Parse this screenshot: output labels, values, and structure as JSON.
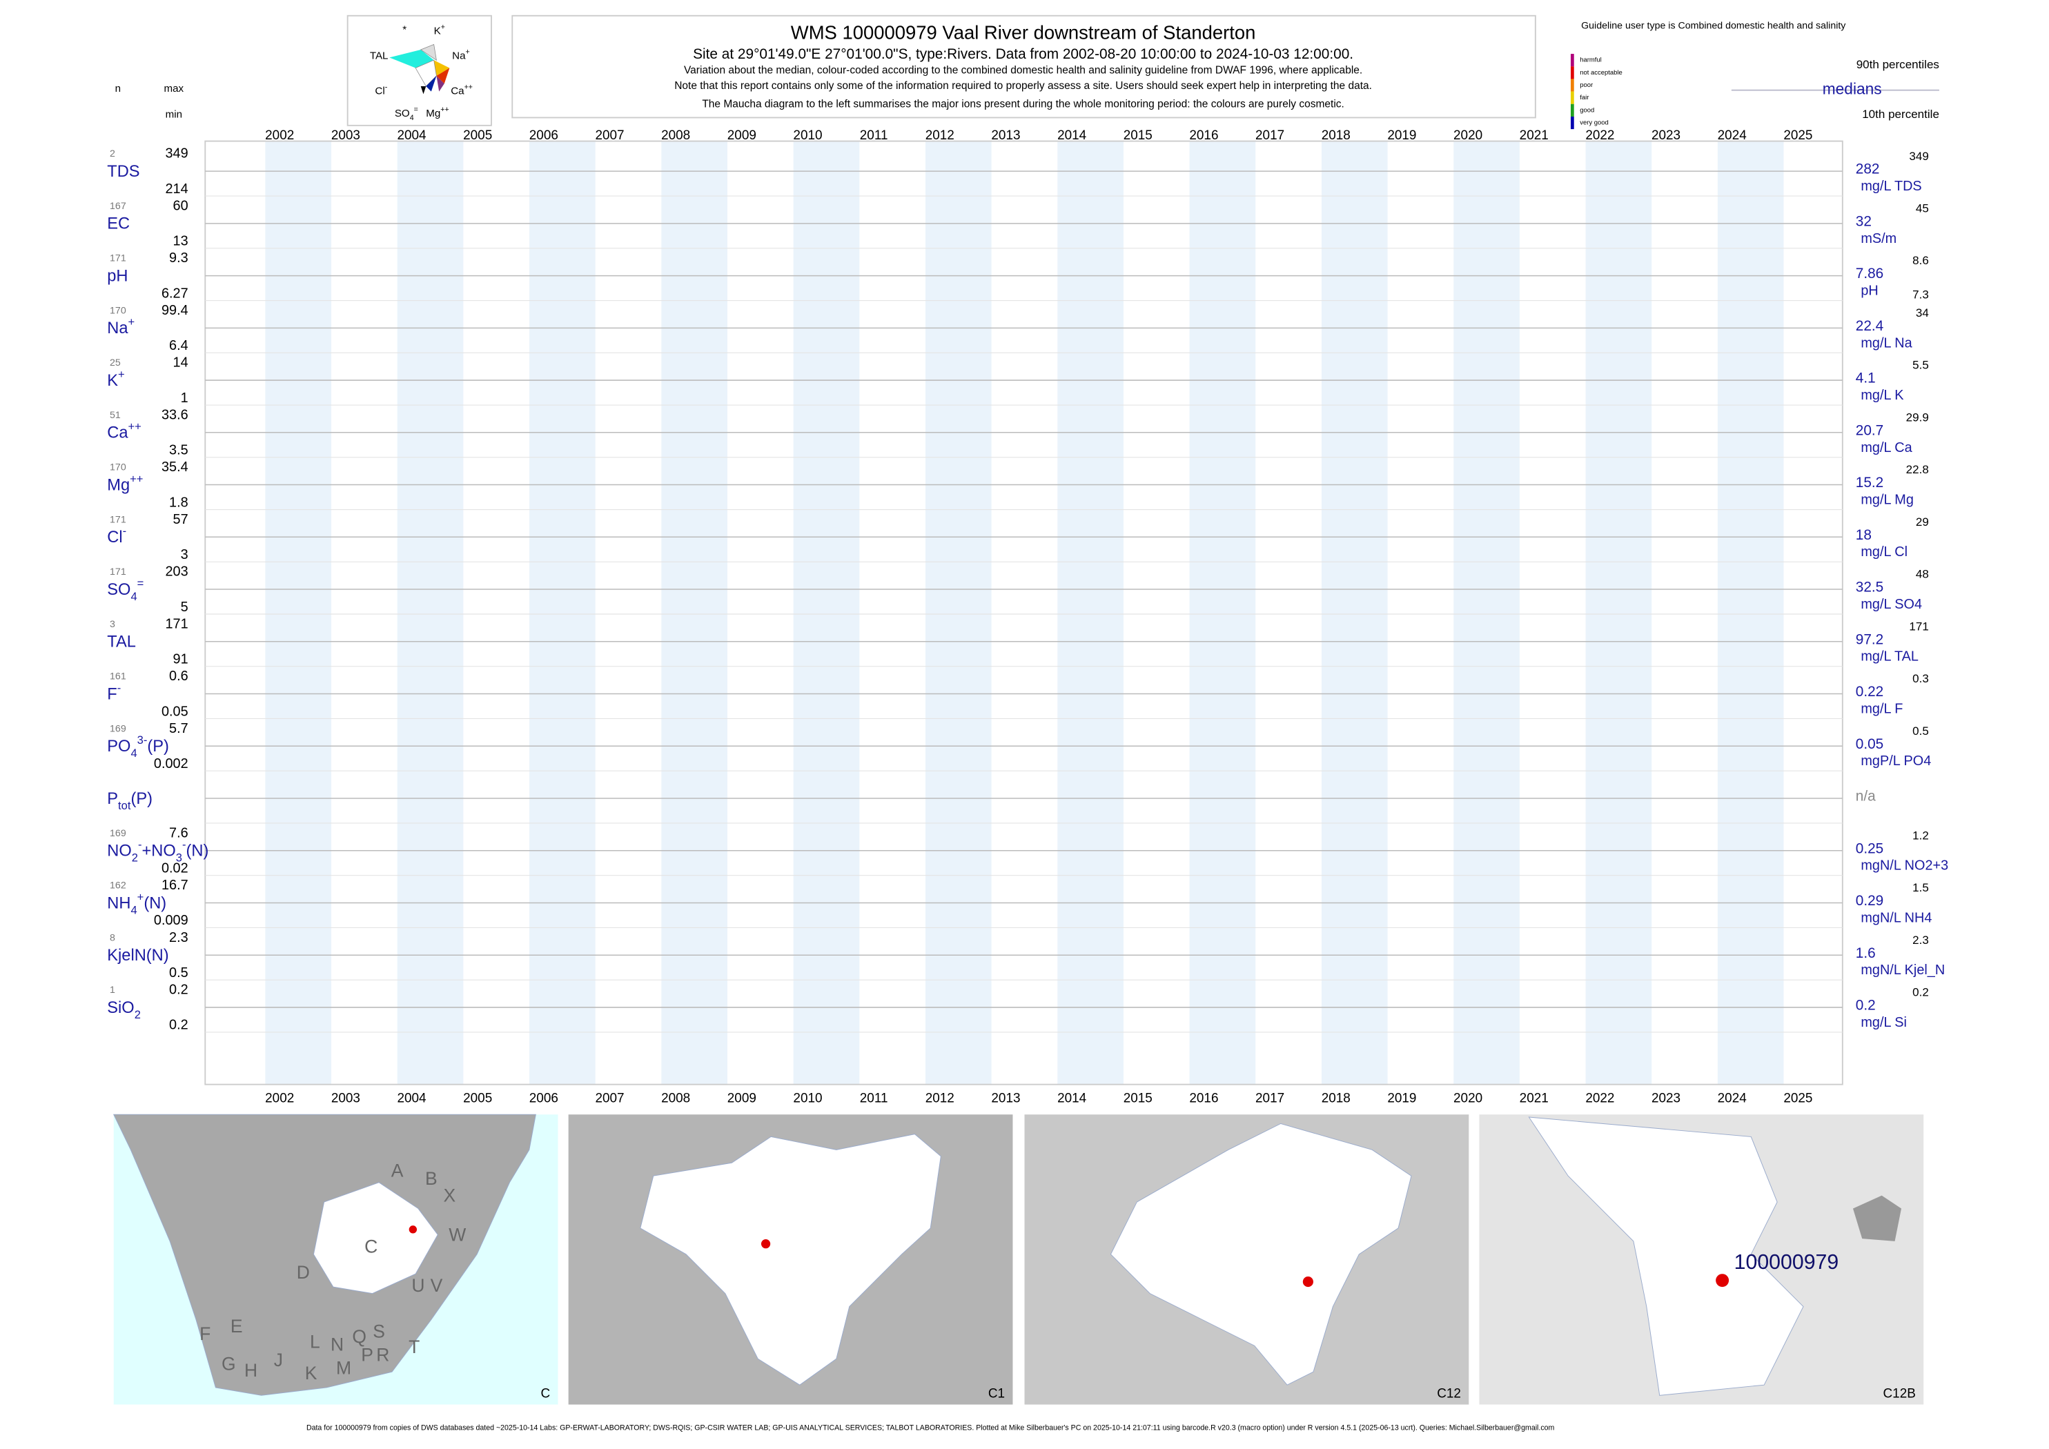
{
  "header": {
    "title": "WMS 100000979  Vaal River downstream of Standerton",
    "site": "Site at 29°01'49.0\"E 27°01'00.0\"S, type:Rivers.  Data from 2002-08-20 10:00:00 to 2024-10-03 12:00:00.",
    "note1": "Variation about the median,  colour-coded according to the combined domestic health and salinity guideline from DWAF 1996, where applicable.",
    "note2": "Note that this report contains only some of the information required to properly assess a site. Users should seek expert help in interpreting the data.",
    "note3": "The Maucha diagram to the left summarises the major ions present during the whole monitoring period: the colours are purely cosmetic."
  },
  "maucha": {
    "labels": [
      {
        "parts": [
          {
            "t": "*"
          }
        ]
      },
      {
        "parts": [
          {
            "t": "K"
          },
          {
            "t": "+",
            "pos": "super"
          }
        ]
      },
      {
        "parts": [
          {
            "t": "TAL"
          }
        ]
      },
      {
        "parts": [
          {
            "t": "Na"
          },
          {
            "t": "+",
            "pos": "super"
          }
        ]
      },
      {
        "parts": [
          {
            "t": "Cl"
          },
          {
            "t": "-",
            "pos": "super"
          }
        ]
      },
      {
        "parts": [
          {
            "t": "Ca"
          },
          {
            "t": "++",
            "pos": "super"
          }
        ]
      },
      {
        "parts": [
          {
            "t": "SO"
          },
          {
            "t": "4",
            "pos": "sub"
          },
          {
            "t": "=",
            "pos": "super"
          }
        ]
      },
      {
        "parts": [
          {
            "t": "Mg"
          },
          {
            "t": "++",
            "pos": "super"
          }
        ]
      }
    ]
  },
  "left_header": {
    "n": "n",
    "max": "max",
    "min": "min"
  },
  "legend": {
    "guideline": "Guideline user type is Combined domestic health and salinity",
    "classes": [
      {
        "name": "harmful",
        "color": "#b0007a"
      },
      {
        "name": "not acceptable",
        "color": "#e00000"
      },
      {
        "name": "poor",
        "color": "#f08000"
      },
      {
        "name": "fair",
        "color": "#e8d000"
      },
      {
        "name": "good",
        "color": "#20a020"
      },
      {
        "name": "very good",
        "color": "#0000b0"
      }
    ],
    "p90": "90th percentiles",
    "median": "medians",
    "p10": "10th percentile"
  },
  "years": [
    2002,
    2003,
    2004,
    2005,
    2006,
    2007,
    2008,
    2009,
    2010,
    2011,
    2012,
    2013,
    2014,
    2015,
    2016,
    2017,
    2018,
    2019,
    2020,
    2021,
    2022,
    2023,
    2024,
    2025
  ],
  "rows": [
    {
      "parts": [
        {
          "t": "TDS"
        }
      ],
      "n": 2,
      "max": 349,
      "min": 214,
      "median": 282,
      "unit": "mg/L TDS",
      "p90": 349
    },
    {
      "parts": [
        {
          "t": "EC"
        }
      ],
      "n": 167,
      "max": 60,
      "min": 13,
      "median": 32,
      "unit": "mS/m",
      "p90": 45
    },
    {
      "parts": [
        {
          "t": "pH"
        }
      ],
      "n": 171,
      "max": 9.3,
      "min": 6.27,
      "median": 7.86,
      "unit": "pH",
      "p90": 8.6,
      "p10": 7.3
    },
    {
      "parts": [
        {
          "t": "Na"
        },
        {
          "t": "+",
          "pos": "super"
        }
      ],
      "n": 170,
      "max": 99.4,
      "min": 6.4,
      "median": 22.4,
      "unit": "mg/L Na",
      "p90": 34
    },
    {
      "parts": [
        {
          "t": "K"
        },
        {
          "t": "+",
          "pos": "super"
        }
      ],
      "n": 25,
      "max": 14,
      "min": 1,
      "median": 4.1,
      "unit": "mg/L K",
      "p90": 5.5
    },
    {
      "parts": [
        {
          "t": "Ca"
        },
        {
          "t": "++",
          "pos": "super"
        }
      ],
      "n": 51,
      "max": 33.6,
      "min": 3.5,
      "median": 20.7,
      "unit": "mg/L Ca",
      "p90": 29.9
    },
    {
      "parts": [
        {
          "t": "Mg"
        },
        {
          "t": "++",
          "pos": "super"
        }
      ],
      "n": 170,
      "max": 35.4,
      "min": 1.8,
      "median": 15.2,
      "unit": "mg/L Mg",
      "p90": 22.8
    },
    {
      "parts": [
        {
          "t": "Cl"
        },
        {
          "t": "-",
          "pos": "super"
        }
      ],
      "n": 171,
      "max": 57,
      "min": 3,
      "median": 18,
      "unit": "mg/L Cl",
      "p90": 29
    },
    {
      "parts": [
        {
          "t": "SO"
        },
        {
          "t": "4",
          "pos": "sub"
        },
        {
          "t": "=",
          "pos": "super"
        }
      ],
      "n": 171,
      "max": 203,
      "min": 5,
      "median": 32.5,
      "unit": "mg/L SO4",
      "p90": 48
    },
    {
      "parts": [
        {
          "t": "TAL"
        }
      ],
      "n": 3,
      "max": 171,
      "min": 91,
      "median": 97.2,
      "unit": "mg/L TAL",
      "p90": 171
    },
    {
      "parts": [
        {
          "t": "F"
        },
        {
          "t": "-",
          "pos": "super"
        }
      ],
      "n": 161,
      "max": 0.6,
      "min": 0.05,
      "median": 0.22,
      "unit": "mg/L F",
      "p90": 0.3
    },
    {
      "parts": [
        {
          "t": "PO"
        },
        {
          "t": "4",
          "pos": "sub"
        },
        {
          "t": "3-",
          "pos": "super"
        },
        {
          "t": "(P)"
        }
      ],
      "n": 169,
      "max": 5.7,
      "min": 0.002,
      "median": 0.05,
      "unit": "mgP/L PO4",
      "p90": 0.5
    },
    {
      "parts": [
        {
          "t": "P"
        },
        {
          "t": "tot",
          "pos": "sub"
        },
        {
          "t": "(P)"
        }
      ],
      "median": "n/a"
    },
    {
      "parts": [
        {
          "t": "NO"
        },
        {
          "t": "2",
          "pos": "sub"
        },
        {
          "t": "-",
          "pos": "super"
        },
        {
          "t": "+NO"
        },
        {
          "t": "3",
          "pos": "sub"
        },
        {
          "t": "-",
          "pos": "super"
        },
        {
          "t": "(N)"
        }
      ],
      "n": 169,
      "max": 7.6,
      "min": 0.02,
      "median": 0.25,
      "unit": "mgN/L NO2+3",
      "p90": 1.2
    },
    {
      "parts": [
        {
          "t": "NH"
        },
        {
          "t": "4",
          "pos": "sub"
        },
        {
          "t": "+",
          "pos": "super"
        },
        {
          "t": "(N)"
        }
      ],
      "n": 162,
      "max": 16.7,
      "min": 0.009,
      "median": 0.29,
      "unit": "mgN/L NH4",
      "p90": 1.5
    },
    {
      "parts": [
        {
          "t": "KjelN(N)"
        }
      ],
      "n": 8,
      "max": 2.3,
      "min": 0.5,
      "median": 1.6,
      "unit": "mgN/L Kjel_N",
      "p90": 2.3
    },
    {
      "parts": [
        {
          "t": "SiO"
        },
        {
          "t": "2",
          "pos": "sub"
        }
      ],
      "n": 1,
      "max": 0.2,
      "min": 0.2,
      "median": 0.2,
      "unit": "mg/L Si",
      "p90": 0.2
    }
  ],
  "maps": [
    {
      "label": "C"
    },
    {
      "label": "C1"
    },
    {
      "label": "C12"
    },
    {
      "label": "C12B"
    }
  ],
  "map_regions": [
    "A",
    "B",
    "X",
    "W",
    "V",
    "U",
    "T",
    "C",
    "D",
    "E",
    "F",
    "G",
    "H",
    "J",
    "K",
    "L",
    "M",
    "N",
    "P",
    "Q",
    "R",
    "S"
  ],
  "site_label": "100000979",
  "footer": "Data for 100000979 from copies of DWS databases dated ~2025-10-14 Labs: GP-ERWAT-LABORATORY; DWS-RQIS; GP-CSIR WATER LAB; GP-UIS ANALYTICAL SERVICES; TALBOT LABORATORIES. Plotted at Mike Silberbauer's PC on 2025-10-14 21:07:11 using barcode.R v20.3 (macro option) under R version 4.5.1 (2025-06-13 ucrt). Queries: Michael.Silberbauer@gmail.com"
}
